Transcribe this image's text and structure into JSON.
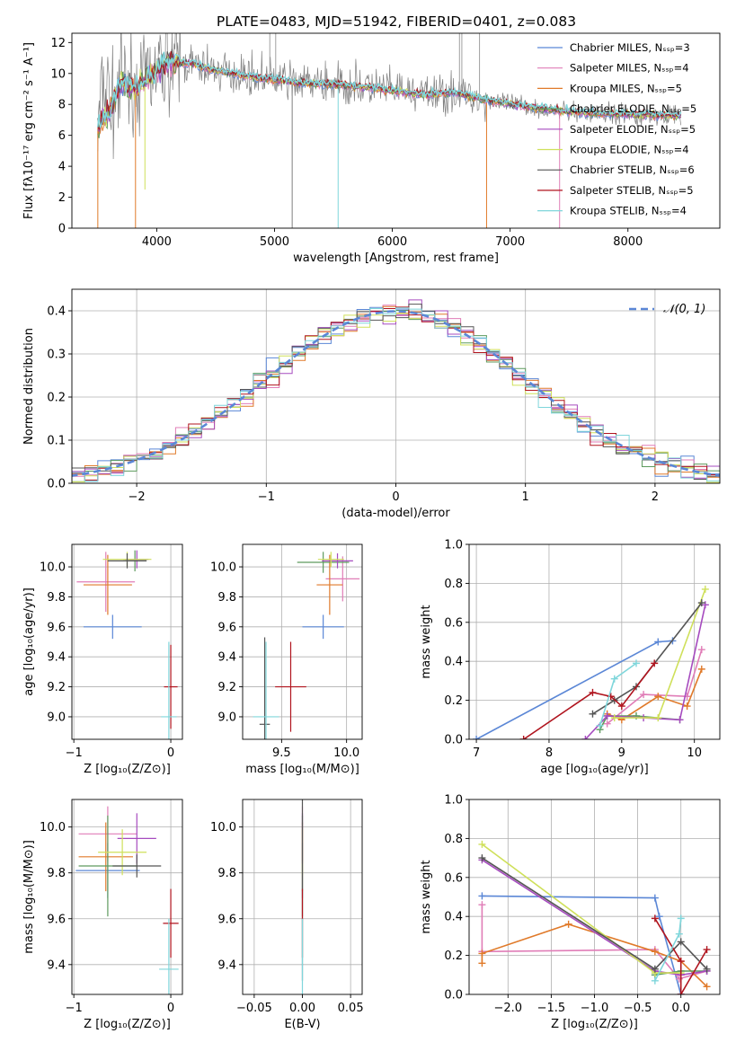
{
  "figure": {
    "title": "PLATE=0483, MJD=51942, FIBERID=0401, z=0.083"
  },
  "colors": {
    "chabrier_miles": "#5b87d6",
    "salpeter_miles": "#e07db7",
    "kroupa_miles": "#e07a2a",
    "chabrier_elodie": "#5d9a5d",
    "salpeter_elodie": "#a64bbf",
    "kroupa_elodie": "#cfe05a",
    "chabrier_stelib": "#555555",
    "salpeter_stelib": "#b0141e",
    "kroupa_stelib": "#7fd6db",
    "data": "#808080"
  },
  "chart_data": [
    {
      "id": "spectrum",
      "type": "line",
      "xlabel": "wavelength [Angstrom, rest frame]",
      "ylabel": "Flux [fλ10⁻¹⁷ erg cm⁻² s⁻¹ A⁻¹]",
      "xlim": [
        3280,
        8780
      ],
      "ylim": [
        0,
        12.6
      ],
      "xticks": [
        "4000",
        "5000",
        "6000",
        "7000",
        "8000"
      ],
      "yticks": [
        "0",
        "2",
        "4",
        "6",
        "8",
        "10",
        "12"
      ],
      "grid": false,
      "legend_position": "top-right",
      "legend": [
        "Chabrier MILES, Nₛₛₚ=3",
        "Salpeter MILES, Nₛₛₚ=4",
        "Kroupa MILES, Nₛₛₚ=5",
        "Chabrier ELODIE, Nₛₛₚ=5",
        "Salpeter ELODIE, Nₛₛₚ=5",
        "Kroupa ELODIE, Nₛₛₚ=4",
        "Chabrier STELIB, Nₛₛₚ=6",
        "Salpeter STELIB, Nₛₛₚ=5",
        "Kroupa STELIB, Nₛₛₚ=4"
      ],
      "continuum": [
        [
          3500,
          6.5
        ],
        [
          3600,
          7.5
        ],
        [
          3700,
          9.5
        ],
        [
          3800,
          9.0
        ],
        [
          3900,
          9.5
        ],
        [
          4000,
          10.2
        ],
        [
          4100,
          10.8
        ],
        [
          4300,
          10.6
        ],
        [
          4500,
          10.2
        ],
        [
          4800,
          9.8
        ],
        [
          5000,
          9.6
        ],
        [
          5200,
          9.4
        ],
        [
          5500,
          9.3
        ],
        [
          5800,
          9.1
        ],
        [
          6000,
          8.9
        ],
        [
          6300,
          8.6
        ],
        [
          6500,
          8.8
        ],
        [
          6800,
          8.3
        ],
        [
          7100,
          7.9
        ],
        [
          7400,
          7.6
        ],
        [
          7800,
          7.4
        ],
        [
          8200,
          7.3
        ],
        [
          8450,
          7.25
        ]
      ],
      "dips": [
        {
          "x": 3500,
          "y": 0
        },
        {
          "x": 3820,
          "y": 0
        },
        {
          "x": 3900,
          "y": 2.5
        },
        {
          "x": 5150,
          "y": 0
        },
        {
          "x": 5540,
          "y": 0
        },
        {
          "x": 6800,
          "y": 0
        },
        {
          "x": 7420,
          "y": 0
        }
      ]
    },
    {
      "id": "residuals",
      "type": "histogram",
      "xlabel": "(data-model)/error",
      "ylabel": "Normed distribution",
      "xlim": [
        -2.5,
        2.5
      ],
      "ylim": [
        0,
        0.45
      ],
      "xticks": [
        "−2",
        "−1",
        "0",
        "1",
        "2"
      ],
      "yticks": [
        "0.0",
        "0.1",
        "0.2",
        "0.3",
        "0.4"
      ],
      "grid": true,
      "legend_position": "top-right",
      "legend": [
        "𝒩(0, 1)"
      ]
    },
    {
      "id": "age_vs_z",
      "type": "errorbar",
      "xlabel": "Z [log₁₀(Z/Z⊙)]",
      "ylabel": "age  [log₁₀(age/yr)]",
      "xlim": [
        -1.02,
        0.12
      ],
      "ylim": [
        8.85,
        10.15
      ],
      "xticks": [
        "−1",
        "0"
      ],
      "yticks": [
        "9.0",
        "9.2",
        "9.4",
        "9.6",
        "9.8",
        "10.0"
      ],
      "grid": true,
      "points": [
        {
          "s": "chabrier_miles",
          "x": -0.6,
          "xe": 0.3,
          "y": 9.6,
          "ye": 0.08
        },
        {
          "s": "salpeter_miles",
          "x": -0.67,
          "xe": 0.3,
          "y": 9.9,
          "ye": 0.2
        },
        {
          "s": "kroupa_miles",
          "x": -0.65,
          "xe": 0.25,
          "y": 9.88,
          "ye": 0.2
        },
        {
          "s": "chabrier_elodie",
          "x": -0.37,
          "xe": 0.12,
          "y": 10.04,
          "ye": 0.07
        },
        {
          "s": "salpeter_elodie",
          "x": -0.35,
          "xe": 0.12,
          "y": 10.05,
          "ye": 0.06
        },
        {
          "s": "kroupa_elodie",
          "x": -0.45,
          "xe": 0.25,
          "y": 10.05,
          "ye": 0.05
        },
        {
          "s": "chabrier_stelib",
          "x": -0.45,
          "xe": 0.2,
          "y": 10.04,
          "ye": 0.05
        },
        {
          "s": "salpeter_stelib",
          "x": 0.0,
          "xe": 0.07,
          "y": 9.2,
          "ye": 0.28
        },
        {
          "s": "kroupa_stelib",
          "x": -0.02,
          "xe": 0.08,
          "y": 9.0,
          "ye": 0.5
        }
      ]
    },
    {
      "id": "age_vs_mass",
      "type": "errorbar",
      "xlabel": "mass [log₁₀(M/M⊙)]",
      "ylabel": "",
      "xlim": [
        9.2,
        10.12
      ],
      "ylim": [
        8.85,
        10.15
      ],
      "xticks": [
        "9.5",
        "10.0"
      ],
      "yticks": [
        "9.0",
        "9.2",
        "9.4",
        "9.6",
        "9.8",
        "10.0"
      ],
      "grid": true,
      "points": [
        {
          "s": "chabrier_miles",
          "x": 9.82,
          "xe": 0.16,
          "y": 9.6,
          "ye": 0.08
        },
        {
          "s": "salpeter_miles",
          "x": 9.97,
          "xe": 0.13,
          "y": 9.92,
          "ye": 0.15
        },
        {
          "s": "kroupa_miles",
          "x": 9.87,
          "xe": 0.1,
          "y": 9.88,
          "ye": 0.2
        },
        {
          "s": "chabrier_elodie",
          "x": 9.82,
          "xe": 0.2,
          "y": 10.03,
          "ye": 0.07
        },
        {
          "s": "salpeter_elodie",
          "x": 9.93,
          "xe": 0.12,
          "y": 10.04,
          "ye": 0.05
        },
        {
          "s": "kroupa_elodie",
          "x": 9.88,
          "xe": 0.1,
          "y": 10.05,
          "ye": 0.05
        },
        {
          "s": "chabrier_stelib",
          "x": 9.37,
          "xe": 0.04,
          "y": 8.95,
          "ye": 0.58
        },
        {
          "s": "salpeter_stelib",
          "x": 9.57,
          "xe": 0.12,
          "y": 9.2,
          "ye": 0.3
        },
        {
          "s": "kroupa_stelib",
          "x": 9.38,
          "xe": 0.1,
          "y": 9.0,
          "ye": 0.5
        }
      ]
    },
    {
      "id": "weight_vs_age",
      "type": "line",
      "xlabel": "age  [log₁₀(age/yr)]",
      "ylabel": "mass weight",
      "xlim": [
        6.9,
        10.35
      ],
      "ylim": [
        0,
        1
      ],
      "xticks": [
        "7",
        "8",
        "9",
        "10"
      ],
      "yticks": [
        "0.0",
        "0.2",
        "0.4",
        "0.6",
        "0.8",
        "1.0"
      ],
      "grid": true,
      "series": [
        {
          "s": "chabrier_miles",
          "x": [
            7.0,
            9.5,
            9.7
          ],
          "y": [
            0.0,
            0.5,
            0.505
          ]
        },
        {
          "s": "salpeter_miles",
          "x": [
            8.8,
            9.3,
            9.9,
            10.1
          ],
          "y": [
            0.08,
            0.23,
            0.22,
            0.46
          ]
        },
        {
          "s": "kroupa_miles",
          "x": [
            8.8,
            9.0,
            9.5,
            9.9,
            10.1
          ],
          "y": [
            0.13,
            0.1,
            0.22,
            0.17,
            0.36
          ]
        },
        {
          "s": "chabrier_elodie",
          "x": [
            8.7,
            8.8,
            9.2,
            9.8
          ],
          "y": [
            0.05,
            0.12,
            0.12,
            0.1
          ]
        },
        {
          "s": "salpeter_elodie",
          "x": [
            8.5,
            8.8,
            9.3,
            9.8,
            10.15
          ],
          "y": [
            0.0,
            0.12,
            0.11,
            0.1,
            0.69
          ]
        },
        {
          "s": "kroupa_elodie",
          "x": [
            8.9,
            9.5,
            10.15
          ],
          "y": [
            0.11,
            0.11,
            0.77
          ]
        },
        {
          "s": "chabrier_stelib",
          "x": [
            8.6,
            8.9,
            9.2,
            10.1
          ],
          "y": [
            0.13,
            0.2,
            0.27,
            0.7
          ]
        },
        {
          "s": "salpeter_stelib",
          "x": [
            7.65,
            8.6,
            8.85,
            9.0,
            9.45
          ],
          "y": [
            0.0,
            0.24,
            0.22,
            0.17,
            0.39
          ]
        },
        {
          "s": "kroupa_stelib",
          "x": [
            8.7,
            8.9,
            9.2
          ],
          "y": [
            0.07,
            0.31,
            0.39
          ]
        }
      ]
    },
    {
      "id": "mass_vs_z",
      "type": "errorbar",
      "xlabel": "Z [log₁₀(Z/Z⊙)]",
      "ylabel": "mass [log₁₀(M/M⊙)]",
      "xlim": [
        -1.02,
        0.12
      ],
      "ylim": [
        9.27,
        10.12
      ],
      "xticks": [
        "−1",
        "0"
      ],
      "yticks": [
        "9.4",
        "9.6",
        "9.8",
        "10.0"
      ],
      "grid": true,
      "points": [
        {
          "s": "chabrier_miles",
          "x": -0.65,
          "xe": 0.33,
          "y": 9.81,
          "ye": 0.12
        },
        {
          "s": "salpeter_miles",
          "x": -0.65,
          "xe": 0.3,
          "y": 9.97,
          "ye": 0.12
        },
        {
          "s": "kroupa_miles",
          "x": -0.67,
          "xe": 0.28,
          "y": 9.87,
          "ye": 0.15
        },
        {
          "s": "chabrier_elodie",
          "x": -0.65,
          "xe": 0.3,
          "y": 9.83,
          "ye": 0.22
        },
        {
          "s": "salpeter_elodie",
          "x": -0.35,
          "xe": 0.2,
          "y": 9.95,
          "ye": 0.11
        },
        {
          "s": "kroupa_elodie",
          "x": -0.5,
          "xe": 0.25,
          "y": 9.89,
          "ye": 0.1
        },
        {
          "s": "chabrier_stelib",
          "x": -0.35,
          "xe": 0.25,
          "y": 9.83,
          "ye": 0.05
        },
        {
          "s": "salpeter_stelib",
          "x": 0.0,
          "xe": 0.08,
          "y": 9.58,
          "ye": 0.15
        },
        {
          "s": "kroupa_stelib",
          "x": -0.02,
          "xe": 0.1,
          "y": 9.38,
          "ye": 0.22
        }
      ]
    },
    {
      "id": "mass_vs_ebv",
      "type": "errorbar",
      "xlabel": "E(B-V)",
      "ylabel": "",
      "xlim": [
        -0.062,
        0.062
      ],
      "ylim": [
        9.27,
        10.12
      ],
      "xticks": [
        "−0.05",
        "0.00",
        "0.05"
      ],
      "yticks": [
        "9.4",
        "9.6",
        "9.8",
        "10.0"
      ],
      "grid": true,
      "points": [
        {
          "s": "chabrier_miles",
          "x": 0,
          "xe": 0,
          "y": 9.81,
          "ye": 0.12
        },
        {
          "s": "salpeter_miles",
          "x": 0,
          "xe": 0,
          "y": 9.97,
          "ye": 0.12
        },
        {
          "s": "kroupa_miles",
          "x": 0,
          "xe": 0,
          "y": 9.87,
          "ye": 0.15
        },
        {
          "s": "chabrier_elodie",
          "x": 0,
          "xe": 0,
          "y": 9.83,
          "ye": 0.22
        },
        {
          "s": "salpeter_elodie",
          "x": 0,
          "xe": 0,
          "y": 9.95,
          "ye": 0.11
        },
        {
          "s": "kroupa_elodie",
          "x": 0,
          "xe": 0,
          "y": 9.89,
          "ye": 0.1
        },
        {
          "s": "chabrier_stelib",
          "x": 0,
          "xe": 0,
          "y": 9.83,
          "ye": 0.5
        },
        {
          "s": "salpeter_stelib",
          "x": 0,
          "xe": 0,
          "y": 9.58,
          "ye": 0.15
        },
        {
          "s": "kroupa_stelib",
          "x": 0,
          "xe": 0,
          "y": 9.38,
          "ye": 0.22
        }
      ]
    },
    {
      "id": "weight_vs_z",
      "type": "line",
      "xlabel": "Z [log₁₀(Z/Z⊙)]",
      "ylabel": "mass weight",
      "xlim": [
        -2.45,
        0.45
      ],
      "ylim": [
        0,
        1
      ],
      "xticks": [
        "−2.0",
        "−1.5",
        "−1.0",
        "−0.5",
        "0.0"
      ],
      "yticks": [
        "0.0",
        "0.2",
        "0.4",
        "0.6",
        "0.8",
        "1.0"
      ],
      "grid": true,
      "series": [
        {
          "s": "chabrier_miles",
          "x": [
            -2.3,
            -0.3,
            -0.25,
            0.0
          ],
          "y": [
            0.505,
            0.495,
            0.4,
            0.0
          ]
        },
        {
          "s": "salpeter_miles",
          "x": [
            -2.3,
            -2.3,
            -0.3,
            -0.02,
            0.3
          ],
          "y": [
            0.46,
            0.22,
            0.23,
            0.08,
            0.12
          ]
        },
        {
          "s": "kroupa_miles",
          "x": [
            -2.3,
            -2.3,
            -1.3,
            -0.3,
            0.0,
            0.3
          ],
          "y": [
            0.16,
            0.21,
            0.36,
            0.22,
            0.17,
            0.04
          ]
        },
        {
          "s": "chabrier_elodie",
          "x": [
            -0.3,
            0.0,
            0.3
          ],
          "y": [
            0.1,
            0.12,
            0.12
          ]
        },
        {
          "s": "salpeter_elodie",
          "x": [
            -2.3,
            -0.3,
            0.0,
            0.3
          ],
          "y": [
            0.69,
            0.12,
            0.1,
            0.12
          ]
        },
        {
          "s": "kroupa_elodie",
          "x": [
            -2.3,
            -0.3,
            0.0
          ],
          "y": [
            0.77,
            0.11,
            0.11
          ]
        },
        {
          "s": "chabrier_stelib",
          "x": [
            -2.3,
            -0.3,
            0.0,
            0.3
          ],
          "y": [
            0.7,
            0.13,
            0.27,
            0.13
          ]
        },
        {
          "s": "salpeter_stelib",
          "x": [
            -0.3,
            0.0,
            0.0,
            0.3
          ],
          "y": [
            0.39,
            0.17,
            0.0,
            0.23
          ]
        },
        {
          "s": "kroupa_stelib",
          "x": [
            -0.3,
            -0.02,
            0.0
          ],
          "y": [
            0.07,
            0.31,
            0.39
          ]
        }
      ]
    }
  ]
}
